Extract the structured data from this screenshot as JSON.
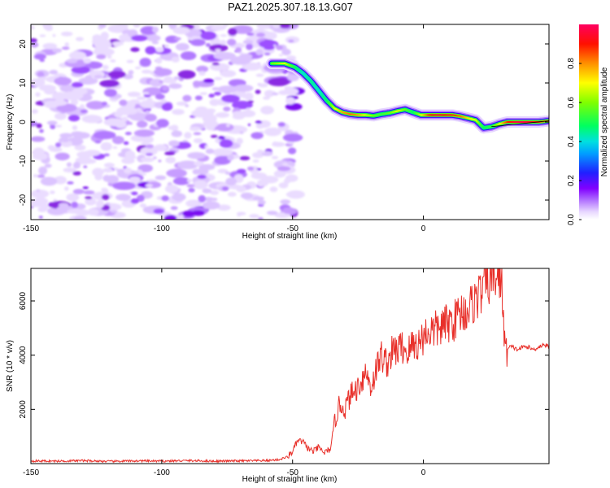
{
  "title": "PAZ1.2025.307.18.13.G07",
  "chart_data": [
    {
      "type": "heatmap",
      "name": "spectrogram",
      "xlabel": "Height of straight line (km)",
      "ylabel": "Frequency (Hz)",
      "xlim": [
        -150,
        48
      ],
      "ylim": [
        -25,
        25
      ],
      "xticks": [
        -150,
        -100,
        -50,
        0
      ],
      "xtick_labels": [
        "-150",
        "-100",
        "-50",
        "0"
      ],
      "yticks": [
        20,
        10,
        0,
        -10,
        -20
      ],
      "ytick_labels": [
        "20",
        "10",
        "0",
        "-10",
        "-20"
      ],
      "noise_region_x": [
        -150,
        -50
      ],
      "ridge": {
        "x": [
          -58,
          -53,
          -49,
          -46,
          -43,
          -40,
          -37,
          -34,
          -31,
          -28,
          -25,
          -22,
          -19,
          -16,
          -13,
          -10,
          -7,
          -4,
          -1,
          2,
          5,
          8,
          11,
          14,
          17,
          20,
          23,
          26,
          29,
          32,
          35,
          38,
          41,
          44,
          48
        ],
        "y": [
          15,
          15,
          14,
          12.5,
          10.5,
          8,
          5.5,
          3.5,
          2.5,
          2,
          1.8,
          1.8,
          1.6,
          2,
          2.3,
          2.8,
          3.2,
          2.5,
          1.8,
          1.8,
          1.8,
          1.8,
          1.8,
          1.5,
          1,
          0.5,
          -1.5,
          -1.2,
          -0.5,
          0,
          0,
          0,
          0,
          0,
          0.3
        ],
        "amplitude": [
          0.6,
          0.7,
          0.5,
          0.4,
          0.45,
          0.4,
          0.5,
          0.7,
          0.8,
          0.85,
          0.8,
          0.7,
          0.6,
          0.55,
          0.6,
          0.7,
          0.6,
          0.5,
          0.7,
          0.9,
          0.95,
          0.92,
          0.9,
          0.85,
          0.75,
          0.7,
          0.5,
          0.55,
          0.7,
          0.9,
          0.97,
          0.98,
          0.95,
          0.9,
          0.8
        ]
      }
    },
    {
      "type": "colorbar",
      "label": "Normalized spectral amplitude",
      "range": [
        0,
        1
      ],
      "ticks": [
        0.0,
        0.2,
        0.4,
        0.6,
        0.8
      ],
      "tick_labels": [
        "0.0",
        "0.2",
        "0.4",
        "0.6",
        "0.8"
      ],
      "colors": [
        "#ffffff",
        "#d8b8ff",
        "#8000ff",
        "#0000ff",
        "#00c0ff",
        "#00ff40",
        "#ffff00",
        "#ff8000",
        "#ff0000",
        "#ff0060"
      ]
    },
    {
      "type": "line",
      "name": "snr",
      "xlabel": "Height of straight line (km)",
      "ylabel": "SNR (10 * v/v)",
      "xlim": [
        -150,
        48
      ],
      "ylim": [
        0,
        7200
      ],
      "xticks": [
        -150,
        -100,
        -50,
        0
      ],
      "xtick_labels": [
        "-150",
        "-100",
        "-50",
        "0"
      ],
      "yticks": [
        2000,
        4000,
        6000
      ],
      "ytick_labels": [
        "2000",
        "4000",
        "6000"
      ],
      "color": "#e8302a",
      "x": [
        -150,
        -140,
        -130,
        -120,
        -110,
        -100,
        -90,
        -80,
        -70,
        -60,
        -55,
        -52,
        -50,
        -48,
        -46,
        -44,
        -42,
        -40,
        -38,
        -36,
        -35,
        -34,
        -32,
        -30,
        -28,
        -26,
        -24,
        -22,
        -20,
        -18,
        -16,
        -14,
        -12,
        -10,
        -8,
        -6,
        -4,
        -2,
        0,
        2,
        4,
        6,
        8,
        10,
        12,
        14,
        16,
        18,
        20,
        22,
        24,
        26,
        27,
        28,
        30,
        31,
        32,
        33,
        34,
        36,
        38,
        40,
        42,
        44,
        46,
        48
      ],
      "y": [
        100,
        90,
        110,
        80,
        100,
        90,
        110,
        90,
        100,
        110,
        150,
        250,
        450,
        850,
        800,
        550,
        450,
        600,
        400,
        500,
        700,
        1500,
        2200,
        2000,
        2500,
        2700,
        3000,
        3400,
        2800,
        3500,
        4000,
        3700,
        4100,
        4200,
        4300,
        4100,
        4400,
        4400,
        4700,
        4900,
        4900,
        5000,
        5100,
        5200,
        5300,
        5600,
        5600,
        5800,
        6100,
        6300,
        6700,
        6800,
        6900,
        6900,
        6800,
        4300,
        4200,
        4300,
        4300,
        4200,
        4300,
        4300,
        4200,
        4300,
        4400,
        4300
      ]
    }
  ]
}
